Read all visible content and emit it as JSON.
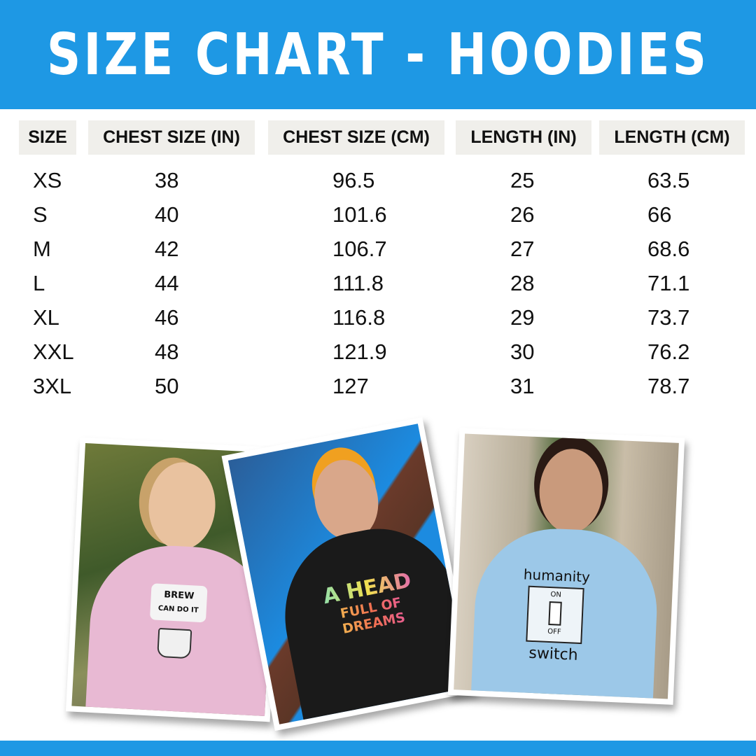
{
  "title": "SIZE CHART - HOODIES",
  "colors": {
    "brand_blue": "#1e98e4",
    "header_cell_bg": "#f0efeb"
  },
  "table": {
    "headers": [
      "SIZE",
      "CHEST SIZE (IN)",
      "CHEST SIZE (CM)",
      "LENGTH (IN)",
      "LENGTH (CM)"
    ],
    "rows": [
      [
        "XS",
        "38",
        "96.5",
        "25",
        "63.5"
      ],
      [
        "S",
        "40",
        "101.6",
        "26",
        "66"
      ],
      [
        "M",
        "42",
        "106.7",
        "27",
        "68.6"
      ],
      [
        "L",
        "44",
        "111.8",
        "28",
        "71.1"
      ],
      [
        "XL",
        "46",
        "116.8",
        "29",
        "73.7"
      ],
      [
        "XXL",
        "48",
        "121.9",
        "30",
        "76.2"
      ],
      [
        "3XL",
        "50",
        "127",
        "31",
        "78.7"
      ]
    ]
  },
  "photos": [
    {
      "hoodie_color": "#e8b9d3",
      "print_line1": "BREW",
      "print_line2": "CAN DO IT"
    },
    {
      "hoodie_color": "#1a1a1a",
      "print_line1": "A HEAD",
      "print_line2": "FULL OF DREAMS"
    },
    {
      "hoodie_color": "#9cc8e8",
      "print_line1": "humanity",
      "print_on": "ON",
      "print_off": "OFF",
      "print_line2": "switch"
    }
  ]
}
